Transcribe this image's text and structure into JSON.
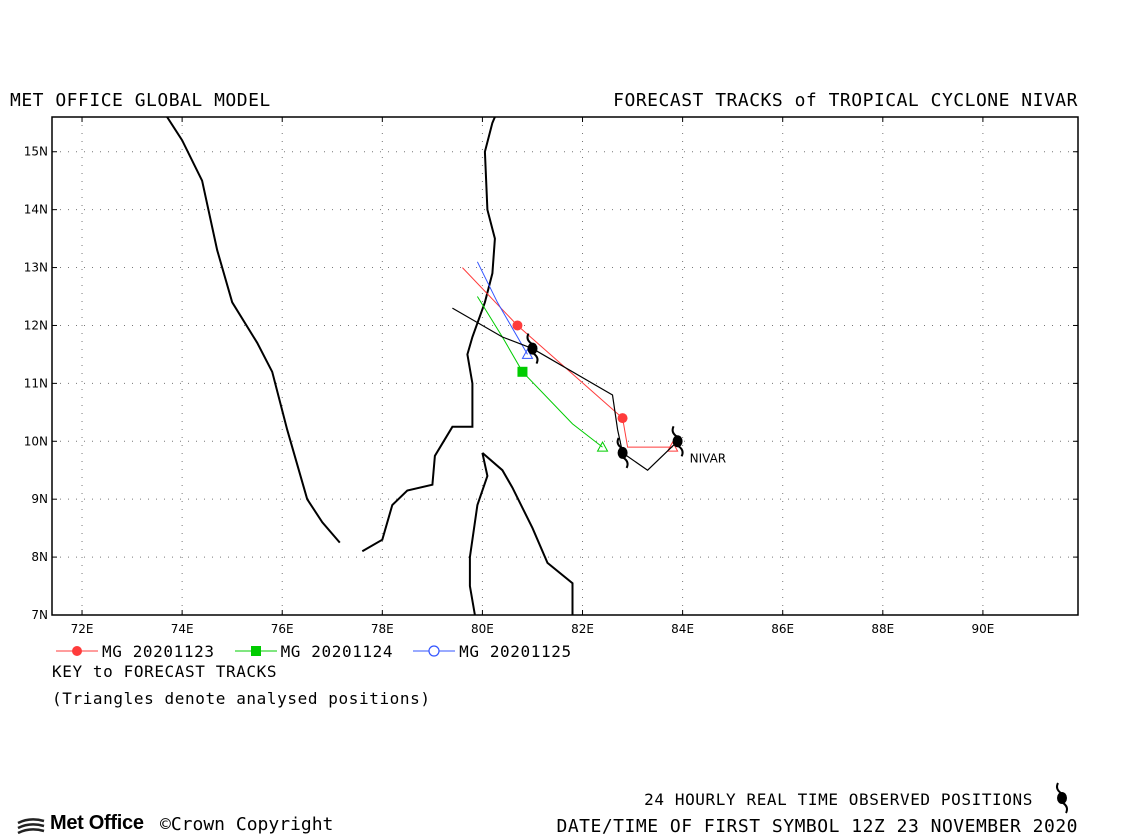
{
  "header": {
    "left_title": "MET OFFICE GLOBAL MODEL",
    "right_title": "FORECAST TRACKS of TROPICAL CYCLONE NIVAR"
  },
  "map": {
    "storm_label": "NIVAR",
    "lon_ticks": [
      {
        "value": 72,
        "label": "72E"
      },
      {
        "value": 74,
        "label": "74E"
      },
      {
        "value": 76,
        "label": "76E"
      },
      {
        "value": 78,
        "label": "78E"
      },
      {
        "value": 80,
        "label": "80E"
      },
      {
        "value": 82,
        "label": "82E"
      },
      {
        "value": 84,
        "label": "84E"
      },
      {
        "value": 86,
        "label": "86E"
      },
      {
        "value": 88,
        "label": "88E"
      },
      {
        "value": 90,
        "label": "90E"
      }
    ],
    "lat_ticks": [
      {
        "value": 7,
        "label": "7N"
      },
      {
        "value": 8,
        "label": "8N"
      },
      {
        "value": 9,
        "label": "9N"
      },
      {
        "value": 10,
        "label": "10N"
      },
      {
        "value": 11,
        "label": "11N"
      },
      {
        "value": 12,
        "label": "12N"
      },
      {
        "value": 13,
        "label": "13N"
      },
      {
        "value": 14,
        "label": "14N"
      },
      {
        "value": 15,
        "label": "15N"
      }
    ],
    "lon_range": [
      71.4,
      91.9
    ],
    "lat_range": [
      7.0,
      15.6
    ],
    "grid": "dotted",
    "colors": {
      "coast": "#000000",
      "observed": "#000000",
      "mg_20201123": "#ff3b3b",
      "mg_20201124": "#00cc00",
      "mg_20201125": "#3355ff"
    },
    "coastlines": [
      [
        [
          73.7,
          15.6
        ],
        [
          74.0,
          15.2
        ],
        [
          74.4,
          14.5
        ],
        [
          74.7,
          13.3
        ],
        [
          75.0,
          12.4
        ],
        [
          75.5,
          11.7
        ],
        [
          75.8,
          11.2
        ],
        [
          76.1,
          10.2
        ],
        [
          76.5,
          9.0
        ],
        [
          76.8,
          8.6
        ],
        [
          77.15,
          8.25
        ]
      ],
      [
        [
          77.6,
          8.1
        ],
        [
          78.0,
          8.3
        ],
        [
          78.2,
          8.9
        ],
        [
          78.5,
          9.15
        ],
        [
          79.0,
          9.25
        ],
        [
          79.05,
          9.75
        ],
        [
          79.4,
          10.25
        ],
        [
          79.8,
          10.25
        ],
        [
          79.8,
          11.0
        ],
        [
          79.7,
          11.5
        ],
        [
          79.8,
          11.8
        ],
        [
          80.05,
          12.4
        ],
        [
          80.2,
          12.9
        ],
        [
          80.25,
          13.5
        ],
        [
          80.1,
          14.0
        ],
        [
          80.05,
          15.0
        ],
        [
          80.2,
          15.5
        ],
        [
          80.25,
          15.6
        ]
      ],
      [
        [
          80.0,
          9.8
        ],
        [
          80.4,
          9.5
        ],
        [
          80.6,
          9.2
        ],
        [
          81.0,
          8.5
        ],
        [
          81.3,
          7.9
        ],
        [
          81.8,
          7.55
        ],
        [
          81.8,
          7.0
        ]
      ],
      [
        [
          80.0,
          9.8
        ],
        [
          80.1,
          9.4
        ],
        [
          79.9,
          8.9
        ],
        [
          79.75,
          8.0
        ],
        [
          79.75,
          7.5
        ],
        [
          79.85,
          7.0
        ]
      ]
    ],
    "observed_track": [
      [
        79.4,
        12.3
      ],
      [
        80.4,
        11.8
      ],
      [
        81.0,
        11.6
      ],
      [
        82.6,
        10.8
      ],
      [
        82.7,
        10.2
      ],
      [
        82.8,
        9.8
      ],
      [
        83.3,
        9.5
      ],
      [
        83.9,
        10.0
      ]
    ],
    "observed_symbols": [
      [
        83.9,
        10.0
      ],
      [
        82.8,
        9.8
      ],
      [
        81.0,
        11.6
      ]
    ]
  },
  "chart_data": {
    "type": "scatter",
    "title": "FORECAST TRACKS of TROPICAL CYCLONE NIVAR",
    "xlabel": "",
    "ylabel": "",
    "xlim": [
      71.4,
      91.9
    ],
    "ylim": [
      7.0,
      15.6
    ],
    "series": [
      {
        "name": "MG 20201123",
        "track": [
          [
            83.8,
            9.9
          ],
          [
            82.9,
            9.9
          ],
          [
            82.8,
            10.4
          ],
          [
            80.7,
            12.0
          ],
          [
            79.6,
            13.0
          ]
        ],
        "marker_points": [
          [
            82.8,
            10.4
          ],
          [
            80.7,
            12.0
          ]
        ],
        "analysed": [
          83.8,
          9.9
        ]
      },
      {
        "name": "MG 20201124",
        "track": [
          [
            82.4,
            9.9
          ],
          [
            81.8,
            10.3
          ],
          [
            80.8,
            11.2
          ],
          [
            80.4,
            11.8
          ],
          [
            79.9,
            12.5
          ]
        ],
        "marker_points": [
          [
            80.8,
            11.2
          ]
        ],
        "analysed": [
          82.4,
          9.9
        ]
      },
      {
        "name": "MG 20201125",
        "track": [
          [
            80.9,
            11.5
          ],
          [
            80.3,
            12.4
          ],
          [
            79.9,
            13.1
          ]
        ],
        "marker_points": [],
        "analysed": [
          80.9,
          11.5
        ]
      }
    ]
  },
  "legend": {
    "items": [
      {
        "label": "MG 20201123",
        "marker": "filled-circle",
        "color": "#ff3b3b"
      },
      {
        "label": "MG 20201124",
        "marker": "filled-square",
        "color": "#00cc00"
      },
      {
        "label": "MG 20201125",
        "marker": "open-circle",
        "color": "#3355ff"
      }
    ],
    "key_title": "KEY to FORECAST TRACKS",
    "note": "(Triangles denote analysed positions)"
  },
  "footer": {
    "observed_positions": "24 HOURLY REAL TIME OBSERVED POSITIONS",
    "date_line": "DATE/TIME OF FIRST SYMBOL 12Z 23 NOVEMBER 2020",
    "logo_text": "Met Office",
    "copyright": "©Crown Copyright"
  }
}
